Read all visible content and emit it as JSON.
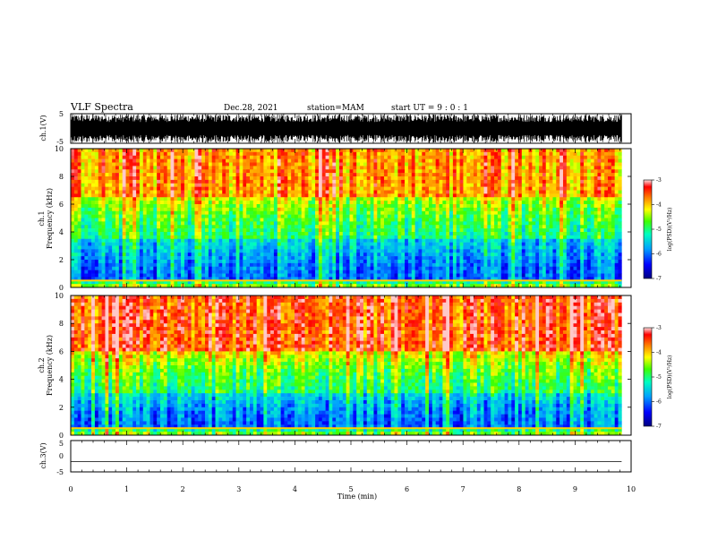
{
  "header": {
    "title": "VLF Spectra",
    "date": "Dec.28, 2021",
    "station": "station=MAM",
    "start": "start  UT =   9 : 0  : 1"
  },
  "colors": {
    "background": "#ffffff",
    "axis": "#000000",
    "waveform": "#000000",
    "colormap": [
      "#000080",
      "#0000ff",
      "#00c0ff",
      "#00ff80",
      "#ffff00",
      "#ff8000",
      "#ff0000",
      "#ffc0c0"
    ]
  },
  "chart_data": [
    {
      "type": "line",
      "name": "ch1-waveform",
      "ylabel": "ch.1(V)",
      "ylim": [
        -5,
        5
      ],
      "yticks": [
        "5",
        "-5"
      ],
      "xlim": [
        0,
        10
      ],
      "description": "dense oscillating waveform nearly filling the full range"
    },
    {
      "type": "heatmap",
      "name": "ch1-spectrogram",
      "ylabel": [
        "ch.1",
        "Frequency (kHz)"
      ],
      "ylim": [
        0,
        10
      ],
      "yticks": [
        "0",
        "2",
        "4",
        "6",
        "8",
        "10"
      ],
      "xlim": [
        0,
        10
      ],
      "colorbar": {
        "label": "log(PSD)(V²/Hz)",
        "range": [
          -7,
          -3
        ],
        "ticks": [
          "-3",
          "-4",
          "-5",
          "-6",
          "-7"
        ]
      },
      "levels_by_band_khz": [
        {
          "band": [
            0,
            0.5
          ],
          "level": -4.5
        },
        {
          "band": [
            0.5,
            3.5
          ],
          "level": -6.0
        },
        {
          "band": [
            3.5,
            6.5
          ],
          "level": -5.0
        },
        {
          "band": [
            6.5,
            10
          ],
          "level": -3.8
        }
      ]
    },
    {
      "type": "heatmap",
      "name": "ch2-spectrogram",
      "ylabel": [
        "ch.2",
        "Frequency (kHz)"
      ],
      "ylim": [
        0,
        10
      ],
      "yticks": [
        "0",
        "2",
        "4",
        "6",
        "8",
        "10"
      ],
      "xlim": [
        0,
        10
      ],
      "colorbar": {
        "label": "log(PSD)(V²/Hz)",
        "range": [
          -7,
          -3
        ],
        "ticks": [
          "-3",
          "-4",
          "-5",
          "-6",
          "-7"
        ]
      },
      "levels_by_band_khz": [
        {
          "band": [
            0,
            0.5
          ],
          "level": -4.5
        },
        {
          "band": [
            0.5,
            3.0
          ],
          "level": -6.0
        },
        {
          "band": [
            3.0,
            6.0
          ],
          "level": -5.0
        },
        {
          "band": [
            6.0,
            10
          ],
          "level": -3.5
        }
      ]
    },
    {
      "type": "line",
      "name": "ch3-waveform",
      "ylabel": "ch.3(V)",
      "ylim": [
        -5,
        5
      ],
      "yticks": [
        "5",
        "0",
        "-5"
      ],
      "xlim": [
        0,
        10
      ],
      "values_constant": -1.7
    }
  ],
  "xaxis": {
    "label": "Time (min)",
    "ticks": [
      "0",
      "1",
      "2",
      "3",
      "4",
      "5",
      "6",
      "7",
      "8",
      "9",
      "10"
    ],
    "data_end": 9.83
  }
}
